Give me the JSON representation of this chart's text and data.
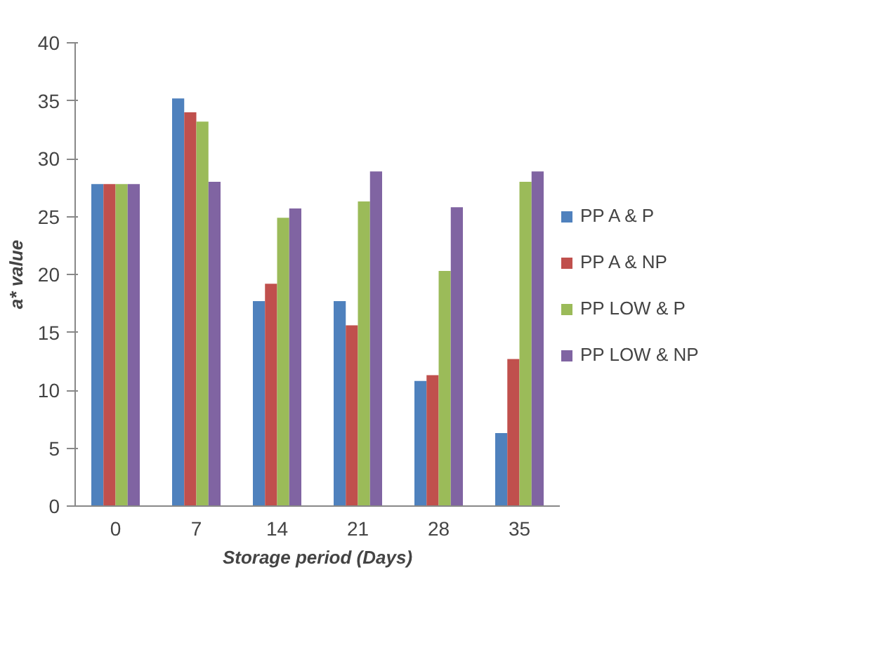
{
  "chart_data": {
    "type": "bar",
    "xlabel": "Storage period (Days)",
    "ylabel": "a* value",
    "categories": [
      "0",
      "7",
      "14",
      "21",
      "28",
      "35"
    ],
    "series": [
      {
        "name": "PP A & P",
        "color": "#4f81bd",
        "values": [
          27.8,
          35.2,
          17.7,
          17.7,
          10.8,
          6.3
        ]
      },
      {
        "name": "PP A & NP",
        "color": "#c0504d",
        "values": [
          27.8,
          34.0,
          19.2,
          15.6,
          11.3,
          12.7
        ]
      },
      {
        "name": "PP LOW & P",
        "color": "#9bbb59",
        "values": [
          27.8,
          33.2,
          24.9,
          26.3,
          20.3,
          28.0
        ]
      },
      {
        "name": "PP LOW & NP",
        "color": "#8064a2",
        "values": [
          27.8,
          28.0,
          25.7,
          28.9,
          25.8,
          28.9
        ]
      }
    ],
    "ylim": [
      0,
      40
    ],
    "yticks": [
      0,
      5,
      10,
      15,
      20,
      25,
      30,
      35,
      40
    ],
    "legend": "right"
  }
}
